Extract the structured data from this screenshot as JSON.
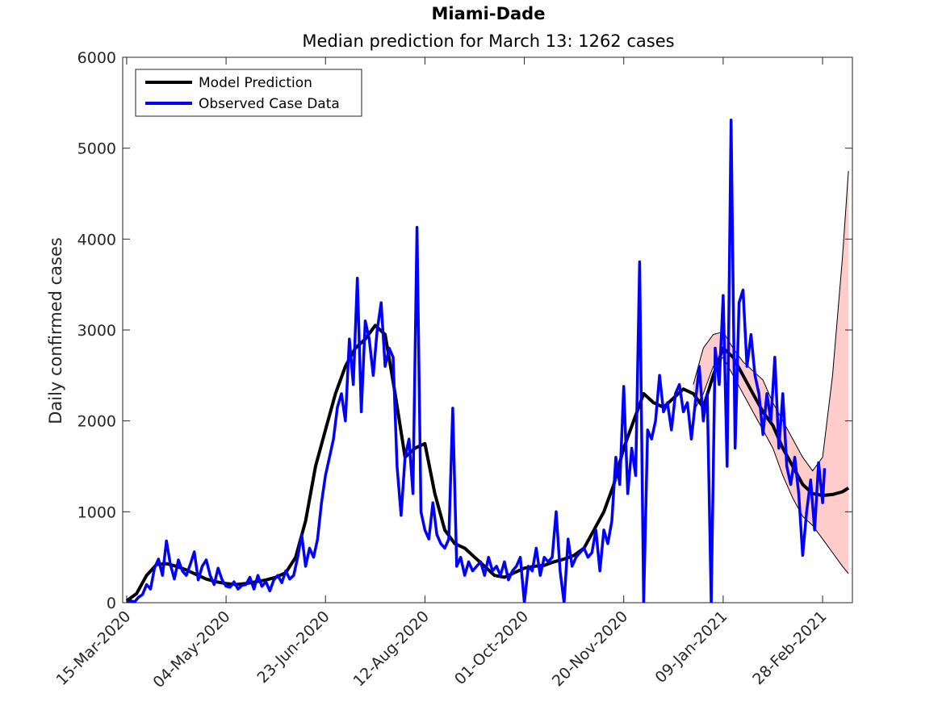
{
  "chart_data": {
    "type": "line",
    "title": "Miami-Dade",
    "subtitle": "Median prediction for March 13: 1262 cases",
    "xlabel": "",
    "ylabel": "Daily confirmed cases",
    "ylim": [
      0,
      6000
    ],
    "xlim": [
      "2020-03-13",
      "2021-03-15"
    ],
    "y_ticks": [
      0,
      1000,
      2000,
      3000,
      4000,
      5000,
      6000
    ],
    "y_tick_labels": [
      "0",
      "1000",
      "2000",
      "3000",
      "4000",
      "5000",
      "6000"
    ],
    "x_ticks": [
      "2020-03-15",
      "2020-05-04",
      "2020-06-23",
      "2020-08-12",
      "2020-10-01",
      "2020-11-20",
      "2021-01-09",
      "2021-02-28"
    ],
    "x_tick_labels": [
      "15-Mar-2020",
      "04-May-2020",
      "23-Jun-2020",
      "12-Aug-2020",
      "01-Oct-2020",
      "20-Nov-2020",
      "09-Jan-2021",
      "28-Feb-2021"
    ],
    "grid": false,
    "legend_position": "top-left",
    "legend": [
      "Model Prediction",
      "Observed Case Data"
    ],
    "colors": {
      "prediction": "#000000",
      "observed": "#0000ff",
      "band_fill": "#ffcccc",
      "band_edge": "#000000"
    },
    "series": [
      {
        "name": "Model Prediction",
        "x": [
          "2020-03-15",
          "2020-03-20",
          "2020-03-25",
          "2020-03-30",
          "2020-04-04",
          "2020-04-09",
          "2020-04-14",
          "2020-04-19",
          "2020-04-24",
          "2020-04-29",
          "2020-05-04",
          "2020-05-09",
          "2020-05-14",
          "2020-05-19",
          "2020-05-24",
          "2020-05-29",
          "2020-06-03",
          "2020-06-08",
          "2020-06-13",
          "2020-06-18",
          "2020-06-23",
          "2020-06-28",
          "2020-07-03",
          "2020-07-08",
          "2020-07-13",
          "2020-07-18",
          "2020-07-23",
          "2020-07-28",
          "2020-08-02",
          "2020-08-07",
          "2020-08-12",
          "2020-08-17",
          "2020-08-22",
          "2020-08-27",
          "2020-09-01",
          "2020-09-06",
          "2020-09-11",
          "2020-09-16",
          "2020-09-21",
          "2020-09-26",
          "2020-10-01",
          "2020-10-06",
          "2020-10-11",
          "2020-10-16",
          "2020-10-21",
          "2020-10-26",
          "2020-10-31",
          "2020-11-05",
          "2020-11-10",
          "2020-11-15",
          "2020-11-20",
          "2020-11-25",
          "2020-11-30",
          "2020-12-05",
          "2020-12-10",
          "2020-12-15",
          "2020-12-20",
          "2020-12-25",
          "2020-12-30",
          "2021-01-04",
          "2021-01-09",
          "2021-01-14",
          "2021-01-19",
          "2021-01-24",
          "2021-01-29",
          "2021-02-03",
          "2021-02-08",
          "2021-02-13",
          "2021-02-18",
          "2021-02-23",
          "2021-02-28",
          "2021-03-05",
          "2021-03-10",
          "2021-03-13"
        ],
        "values": [
          20,
          100,
          300,
          420,
          430,
          400,
          360,
          310,
          260,
          230,
          210,
          200,
          210,
          230,
          250,
          280,
          330,
          500,
          900,
          1500,
          1900,
          2300,
          2600,
          2800,
          2900,
          3050,
          2950,
          2300,
          1600,
          1700,
          1750,
          1200,
          800,
          650,
          600,
          500,
          400,
          300,
          280,
          330,
          380,
          400,
          410,
          450,
          480,
          520,
          600,
          800,
          1000,
          1300,
          1700,
          2000,
          2300,
          2200,
          2150,
          2250,
          2350,
          2300,
          2150,
          2500,
          2800,
          2700,
          2500,
          2300,
          2100,
          1950,
          1700,
          1500,
          1300,
          1200,
          1180,
          1190,
          1220,
          1262
        ]
      },
      {
        "name": "Observed Case Data",
        "x": [
          "2020-03-15",
          "2020-03-17",
          "2020-03-19",
          "2020-03-21",
          "2020-03-23",
          "2020-03-25",
          "2020-03-27",
          "2020-03-29",
          "2020-03-31",
          "2020-04-02",
          "2020-04-04",
          "2020-04-06",
          "2020-04-08",
          "2020-04-10",
          "2020-04-12",
          "2020-04-14",
          "2020-04-16",
          "2020-04-18",
          "2020-04-20",
          "2020-04-22",
          "2020-04-24",
          "2020-04-26",
          "2020-04-28",
          "2020-04-30",
          "2020-05-02",
          "2020-05-04",
          "2020-05-06",
          "2020-05-08",
          "2020-05-10",
          "2020-05-12",
          "2020-05-14",
          "2020-05-16",
          "2020-05-18",
          "2020-05-20",
          "2020-05-22",
          "2020-05-24",
          "2020-05-26",
          "2020-05-28",
          "2020-05-30",
          "2020-06-01",
          "2020-06-03",
          "2020-06-05",
          "2020-06-07",
          "2020-06-09",
          "2020-06-11",
          "2020-06-13",
          "2020-06-15",
          "2020-06-17",
          "2020-06-19",
          "2020-06-21",
          "2020-06-23",
          "2020-06-25",
          "2020-06-27",
          "2020-06-29",
          "2020-07-01",
          "2020-07-03",
          "2020-07-05",
          "2020-07-07",
          "2020-07-09",
          "2020-07-11",
          "2020-07-13",
          "2020-07-15",
          "2020-07-17",
          "2020-07-19",
          "2020-07-21",
          "2020-07-23",
          "2020-07-25",
          "2020-07-27",
          "2020-07-29",
          "2020-07-31",
          "2020-08-02",
          "2020-08-04",
          "2020-08-06",
          "2020-08-08",
          "2020-08-10",
          "2020-08-12",
          "2020-08-14",
          "2020-08-16",
          "2020-08-18",
          "2020-08-20",
          "2020-08-22",
          "2020-08-24",
          "2020-08-26",
          "2020-08-28",
          "2020-08-30",
          "2020-09-01",
          "2020-09-03",
          "2020-09-05",
          "2020-09-07",
          "2020-09-09",
          "2020-09-11",
          "2020-09-13",
          "2020-09-15",
          "2020-09-17",
          "2020-09-19",
          "2020-09-21",
          "2020-09-23",
          "2020-09-25",
          "2020-09-27",
          "2020-09-29",
          "2020-10-01",
          "2020-10-03",
          "2020-10-05",
          "2020-10-07",
          "2020-10-09",
          "2020-10-11",
          "2020-10-13",
          "2020-10-15",
          "2020-10-17",
          "2020-10-19",
          "2020-10-21",
          "2020-10-23",
          "2020-10-25",
          "2020-10-27",
          "2020-10-29",
          "2020-10-31",
          "2020-11-02",
          "2020-11-04",
          "2020-11-06",
          "2020-11-08",
          "2020-11-10",
          "2020-11-12",
          "2020-11-14",
          "2020-11-16",
          "2020-11-18",
          "2020-11-20",
          "2020-11-22",
          "2020-11-24",
          "2020-11-26",
          "2020-11-28",
          "2020-11-30",
          "2020-12-02",
          "2020-12-04",
          "2020-12-06",
          "2020-12-08",
          "2020-12-10",
          "2020-12-12",
          "2020-12-14",
          "2020-12-16",
          "2020-12-18",
          "2020-12-20",
          "2020-12-22",
          "2020-12-24",
          "2020-12-26",
          "2020-12-28",
          "2020-12-30",
          "2021-01-01",
          "2021-01-03",
          "2021-01-05",
          "2021-01-07",
          "2021-01-09",
          "2021-01-11",
          "2021-01-13",
          "2021-01-15",
          "2021-01-17",
          "2021-01-19",
          "2021-01-21",
          "2021-01-23",
          "2021-01-25",
          "2021-01-27",
          "2021-01-29",
          "2021-01-31",
          "2021-02-02",
          "2021-02-04",
          "2021-02-06",
          "2021-02-08",
          "2021-02-10",
          "2021-02-12",
          "2021-02-14",
          "2021-02-16",
          "2021-02-18",
          "2021-02-20",
          "2021-02-22",
          "2021-02-24",
          "2021-02-26",
          "2021-02-28",
          "2021-03-01"
        ],
        "values": [
          0,
          20,
          10,
          60,
          90,
          200,
          150,
          380,
          480,
          300,
          680,
          420,
          260,
          470,
          350,
          300,
          420,
          560,
          250,
          400,
          470,
          300,
          200,
          380,
          250,
          180,
          170,
          230,
          150,
          190,
          200,
          280,
          150,
          300,
          180,
          230,
          130,
          250,
          300,
          220,
          350,
          260,
          300,
          500,
          750,
          400,
          600,
          500,
          700,
          1100,
          1400,
          1600,
          1800,
          2150,
          2300,
          2000,
          2900,
          2400,
          3570,
          2100,
          3100,
          2900,
          2500,
          3000,
          3300,
          2600,
          2800,
          2700,
          1500,
          960,
          1600,
          1800,
          1200,
          4130,
          1000,
          800,
          700,
          1100,
          750,
          650,
          600,
          700,
          2140,
          400,
          500,
          300,
          450,
          350,
          400,
          450,
          300,
          500,
          350,
          400,
          300,
          450,
          250,
          350,
          400,
          500,
          0,
          400,
          350,
          600,
          300,
          500,
          450,
          500,
          1000,
          350,
          0,
          700,
          400,
          500,
          550,
          600,
          500,
          550,
          800,
          350,
          800,
          650,
          900,
          1600,
          1300,
          2380,
          1200,
          1700,
          1400,
          3750,
          0,
          1900,
          1800,
          2000,
          2500,
          2100,
          2200,
          1900,
          2300,
          2400,
          2100,
          2200,
          1800,
          2200,
          2600,
          2000,
          2300,
          0,
          2800,
          2400,
          3380,
          1500,
          5310,
          1700,
          3300,
          3440,
          2600,
          2950,
          2500,
          2300,
          1850,
          2300,
          2000,
          2700,
          1700,
          2300,
          1500,
          1300,
          1600,
          1200,
          520,
          1000,
          1350,
          800,
          1540,
          1100,
          1480
        ]
      }
    ],
    "prediction_band": {
      "x": [
        "2020-12-25",
        "2020-12-30",
        "2021-01-04",
        "2021-01-09",
        "2021-01-14",
        "2021-01-19",
        "2021-01-24",
        "2021-01-29",
        "2021-02-03",
        "2021-02-08",
        "2021-02-13",
        "2021-02-18",
        "2021-02-23",
        "2021-02-28",
        "2021-03-05",
        "2021-03-10",
        "2021-03-13"
      ],
      "upper": [
        2400,
        2800,
        2950,
        2980,
        2800,
        2650,
        2550,
        2450,
        2200,
        2000,
        1800,
        1600,
        1450,
        1600,
        2500,
        3800,
        4750
      ],
      "lower": [
        2100,
        2300,
        2600,
        2700,
        2500,
        2300,
        2100,
        1900,
        1700,
        1400,
        1150,
        950,
        850,
        700,
        550,
        400,
        320
      ]
    }
  }
}
